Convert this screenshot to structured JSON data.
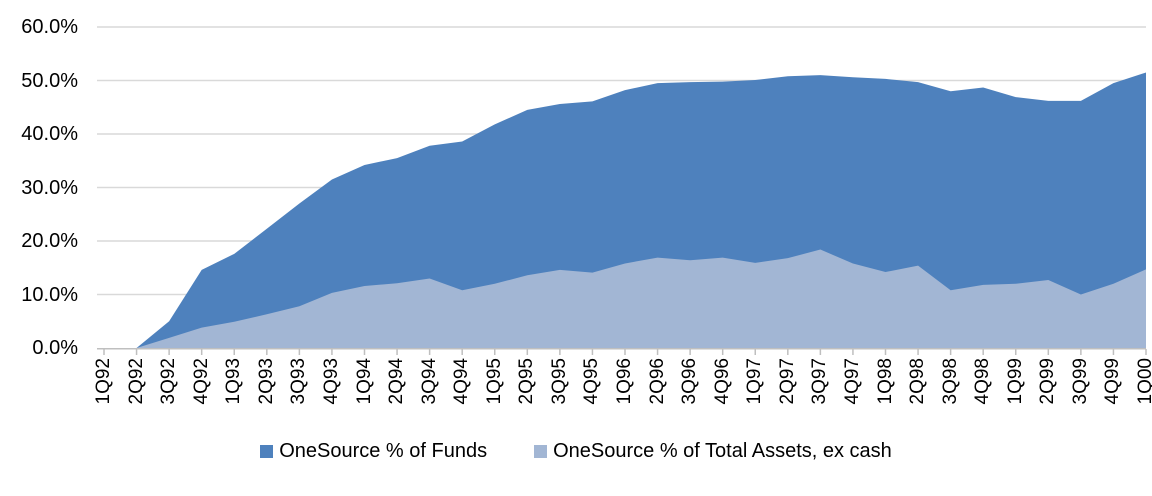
{
  "chart_data": {
    "type": "area",
    "overlap": true,
    "title": "",
    "xlabel": "",
    "ylabel": "",
    "categories": [
      "1Q92",
      "2Q92",
      "3Q92",
      "4Q92",
      "1Q93",
      "2Q93",
      "3Q93",
      "4Q93",
      "1Q94",
      "2Q94",
      "3Q94",
      "4Q94",
      "1Q95",
      "2Q95",
      "3Q95",
      "4Q95",
      "1Q96",
      "2Q96",
      "3Q96",
      "4Q96",
      "1Q97",
      "2Q97",
      "3Q97",
      "4Q97",
      "1Q98",
      "2Q98",
      "3Q98",
      "4Q98",
      "1Q99",
      "2Q99",
      "3Q99",
      "4Q99",
      "1Q00"
    ],
    "series": [
      {
        "name": "OneSource % of Funds",
        "color": "#4E81BD",
        "values": [
          0.0,
          0.0,
          5.0,
          14.6,
          17.6,
          22.3,
          27.0,
          31.5,
          34.2,
          35.5,
          37.8,
          38.6,
          41.8,
          44.5,
          45.6,
          46.1,
          48.2,
          49.5,
          49.7,
          49.8,
          50.1,
          50.8,
          51.0,
          50.6,
          50.3,
          49.7,
          48.0,
          48.7,
          46.9,
          46.2,
          46.2,
          49.5,
          51.5
        ]
      },
      {
        "name": "OneSource % of Total Assets, ex cash",
        "color": "#A2B6D4",
        "values": [
          0.0,
          0.0,
          1.9,
          3.8,
          4.9,
          6.3,
          7.8,
          10.3,
          11.6,
          12.1,
          13.0,
          10.8,
          12.0,
          13.6,
          14.6,
          14.1,
          15.8,
          16.9,
          16.4,
          16.9,
          15.9,
          16.8,
          18.4,
          15.8,
          14.2,
          15.4,
          10.8,
          11.8,
          12.0,
          12.7,
          10.0,
          12.0,
          14.7
        ]
      }
    ],
    "ylim": [
      0,
      60
    ],
    "y_tick_step": 10,
    "y_tick_labels": [
      "0.0%",
      "10.0%",
      "20.0%",
      "30.0%",
      "40.0%",
      "50.0%",
      "60.0%"
    ],
    "grid": "horizontal",
    "grid_color": "#D9D9D9",
    "axis_color": "#BFBFBF",
    "text_color": "#000000",
    "background": "#FFFFFF",
    "legend_position": "bottom"
  }
}
